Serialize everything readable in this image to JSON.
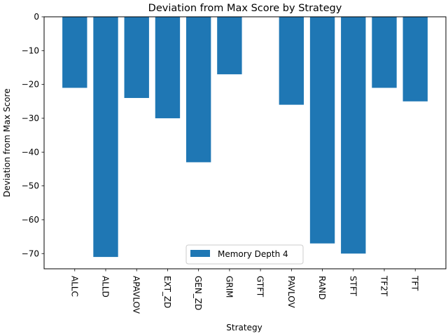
{
  "chart_data": {
    "type": "bar",
    "title": "Deviation from Max Score by Strategy",
    "xlabel": "Strategy",
    "ylabel": "Deviation from Max Score",
    "categories": [
      "ALLC",
      "ALLD",
      "APAVLOV",
      "EXT_ZD",
      "GEN_ZD",
      "GRIM",
      "GTFT",
      "PAVLOV",
      "RAND",
      "STFT",
      "TF2T",
      "TFT"
    ],
    "series": [
      {
        "name": "Memory Depth 4",
        "values": [
          -21,
          -71,
          -24,
          -30,
          -43,
          -17,
          0,
          -26,
          -67,
          -70,
          -21,
          -25
        ],
        "color": "#1f77b4"
      }
    ],
    "ylim": [
      -74.5,
      0
    ],
    "yticks": [
      0,
      -10,
      -20,
      -30,
      -40,
      -50,
      -60,
      -70
    ],
    "ytick_labels": [
      "0",
      "−10",
      "−20",
      "−30",
      "−40",
      "−50",
      "−60",
      "−70"
    ],
    "xtick_rotation": "vertical",
    "grid": false,
    "legend": {
      "placement": "lower-center"
    }
  }
}
